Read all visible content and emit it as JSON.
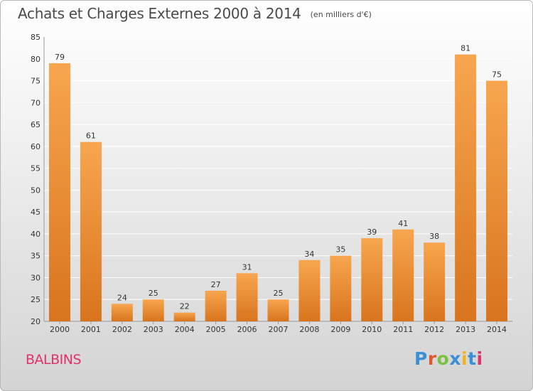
{
  "header": {
    "title": "Achats et Charges Externes 2000 à 2014",
    "subtitle": "(en milliers d'€)"
  },
  "place": "BALBINS",
  "brand": {
    "text": "Proxiti",
    "colors": [
      "#3a8fd6",
      "#e0582e",
      "#7cc242",
      "#3a8fd6",
      "#f1b21c",
      "#3a8fd6",
      "#e0326e"
    ]
  },
  "colors": {
    "bar_light": "#f7a64f",
    "bar_dark": "#d9741e",
    "place_text": "#e0326e"
  },
  "chart_data": {
    "type": "bar",
    "categories": [
      "2000",
      "2001",
      "2002",
      "2003",
      "2004",
      "2005",
      "2006",
      "2007",
      "2008",
      "2009",
      "2010",
      "2011",
      "2012",
      "2013",
      "2014"
    ],
    "values": [
      79,
      61,
      24,
      25,
      22,
      27,
      31,
      25,
      34,
      35,
      39,
      41,
      38,
      81,
      75
    ],
    "title": "Achats et Charges Externes 2000 à 2014",
    "ylim": [
      20,
      85
    ],
    "yticks": [
      20,
      25,
      30,
      35,
      40,
      45,
      50,
      55,
      60,
      65,
      70,
      75,
      80,
      85
    ],
    "grid": true,
    "data_labels": true
  }
}
